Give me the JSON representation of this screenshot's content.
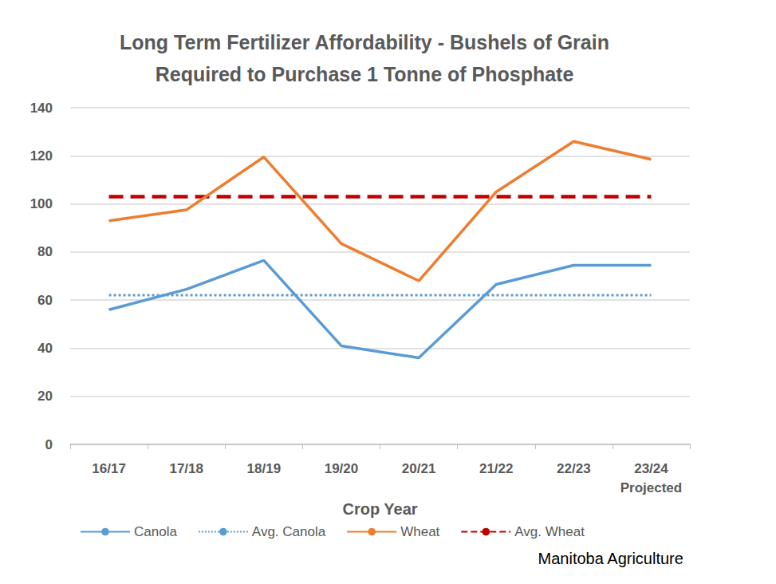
{
  "chart_data": {
    "type": "line",
    "title": "Long Term Fertilizer Affordability - Bushels of Grain\nRequired to Purchase 1 Tonne of Phosphate",
    "x_label": "Crop Year",
    "source": "Manitoba Agriculture",
    "categories": [
      "16/17",
      "17/18",
      "18/19",
      "19/20",
      "20/21",
      "21/22",
      "22/23",
      "23/24\nProjected"
    ],
    "series": [
      {
        "name": "Canola",
        "color": "#5B9BD5",
        "line_style": "solid",
        "marker": "none",
        "values": [
          56,
          64.5,
          76.5,
          41,
          36,
          66.5,
          74.5,
          74.5
        ]
      },
      {
        "name": "Avg. Canola",
        "color": "#5B9BD5",
        "line_style": "dotted",
        "marker": "none",
        "values": [
          62,
          62,
          62,
          62,
          62,
          62,
          62,
          62
        ]
      },
      {
        "name": "Wheat",
        "color": "#ED7D31",
        "line_style": "solid",
        "marker": "none",
        "values": [
          93,
          97.5,
          119.5,
          83.5,
          68,
          105,
          126,
          118.5
        ]
      },
      {
        "name": "Avg. Wheat",
        "color": "#C00000",
        "line_style": "dashed",
        "marker": "none",
        "values": [
          103,
          103,
          103,
          103,
          103,
          103,
          103,
          103
        ]
      }
    ],
    "ylim": [
      0,
      140
    ],
    "yticks": [
      0,
      20,
      40,
      60,
      80,
      100,
      120,
      140
    ],
    "grid": true,
    "legend": "bottom"
  }
}
